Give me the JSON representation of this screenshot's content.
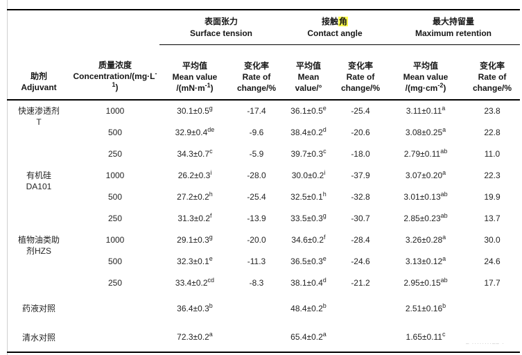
{
  "watermark": "– ········–– ·",
  "highlight_color": "#ffff4f",
  "table": {
    "header": {
      "col1": "助剂\nAdjuvant",
      "col2": "质量浓度\nConcentration/(mg·L^{-1})",
      "groups": [
        {
          "cn": "表面张力",
          "en": "Surface tension"
        },
        {
          "cn_pre": "接触",
          "cn_highlight": "角",
          "en": "Contact angle"
        },
        {
          "cn": "最大持留量",
          "en": "Maximum retention"
        }
      ],
      "subcols": [
        "平均值\nMean value\n/(mN·m^{-1})",
        "变化率\nRate of\nchange/%",
        "平均值\nMean\nvalue/°",
        "变化率\nRate of\nchange/%",
        "平均值\nMean value\n/(mg·cm^{-2})",
        "变化率\nRate of\nchange/%"
      ]
    },
    "rows": [
      {
        "adjuvant": "快速渗透剂\nT",
        "span": 3,
        "cells": [
          "1000",
          "30.1±0.5^{g}",
          "-17.4",
          "36.1±0.5^{e}",
          "-25.4",
          "3.11±0.11^{a}",
          "23.8"
        ]
      },
      {
        "cells": [
          "500",
          "32.9±0.4^{de}",
          "-9.6",
          "38.4±0.2^{d}",
          "-20.6",
          "3.08±0.25^{a}",
          "22.8"
        ]
      },
      {
        "cells": [
          "250",
          "34.3±0.7^{c}",
          "-5.9",
          "39.7±0.3^{c}",
          "-18.0",
          "2.79±0.11^{ab}",
          "11.0"
        ]
      },
      {
        "adjuvant": "有机硅\nDA101",
        "span": 3,
        "cells": [
          "1000",
          "26.2±0.3^{i}",
          "-28.0",
          "30.0±0.2^{i}",
          "-37.9",
          "3.07±0.20^{a}",
          "22.3"
        ]
      },
      {
        "cells": [
          "500",
          "27.2±0.2^{h}",
          "-25.4",
          "32.5±0.1^{h}",
          "-32.8",
          "3.01±0.13^{ab}",
          "19.9"
        ]
      },
      {
        "cells": [
          "250",
          "31.3±0.2^{f}",
          "-13.9",
          "33.5±0.3^{g}",
          "-30.7",
          "2.85±0.23^{ab}",
          "13.7"
        ]
      },
      {
        "adjuvant": "植物油类助\n剂HZS",
        "span": 3,
        "cells": [
          "1000",
          "29.1±0.3^{g}",
          "-20.0",
          "34.6±0.2^{f}",
          "-28.4",
          "3.26±0.28^{a}",
          "30.0"
        ]
      },
      {
        "cells": [
          "500",
          "32.3±0.1^{e}",
          "-11.3",
          "36.5±0.3^{e}",
          "-24.6",
          "3.13±0.12^{a}",
          "24.6"
        ]
      },
      {
        "cells": [
          "250",
          "33.4±0.2^{cd}",
          "-8.3",
          "38.1±0.4^{d}",
          "-21.2",
          "2.95±0.15^{ab}",
          "17.7"
        ]
      },
      {
        "adjuvant": "药液对照",
        "span": 1,
        "h": 42,
        "cells": [
          "",
          "36.4±0.3^{b}",
          "",
          "48.4±0.2^{b}",
          "",
          "2.51±0.16^{b}",
          ""
        ]
      },
      {
        "adjuvant": "清水对照",
        "span": 1,
        "h": 42,
        "cells": [
          "",
          "72.3±0.2^{a}",
          "",
          "65.4±0.2^{a}",
          "",
          "1.65±0.11^{c}",
          ""
        ]
      }
    ]
  }
}
